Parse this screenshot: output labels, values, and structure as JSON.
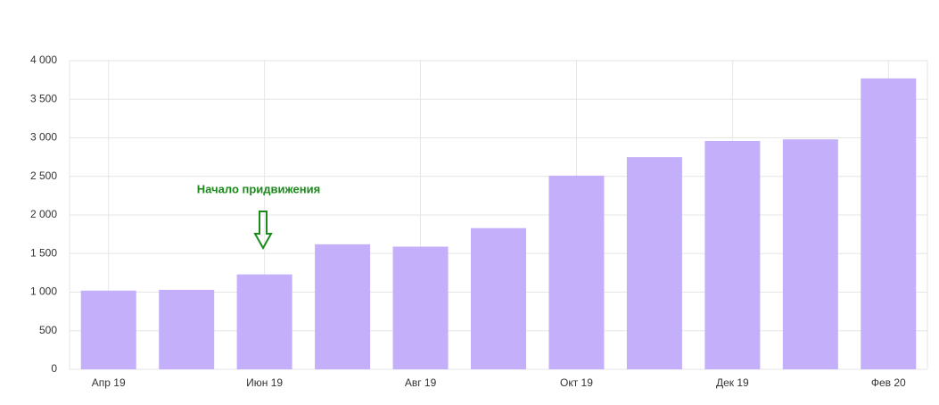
{
  "chart_data": {
    "type": "bar",
    "annotation": "Начало придвижения",
    "categories": [
      "Апр 19",
      null,
      "Июн 19",
      null,
      "Авг 19",
      null,
      "Окт 19",
      null,
      "Дек 19",
      null,
      "Фев 20"
    ],
    "values": [
      1020,
      1030,
      1230,
      1620,
      1590,
      1830,
      2510,
      2750,
      2960,
      2980,
      3770
    ],
    "color": "#c4b0fa",
    "ylim": [
      0,
      4000
    ],
    "yticks": [
      0,
      500,
      {
        "value": 1000,
        "label": "1 000"
      },
      {
        "value": 1500,
        "label": "1 500"
      },
      {
        "value": 2000,
        "label": "2 000"
      },
      {
        "value": 2500,
        "label": "2 500"
      },
      {
        "value": 3000,
        "label": "3 000"
      },
      {
        "value": 3500,
        "label": "3 500"
      },
      {
        "value": 4000,
        "label": "4 000"
      }
    ],
    "grid": true
  }
}
